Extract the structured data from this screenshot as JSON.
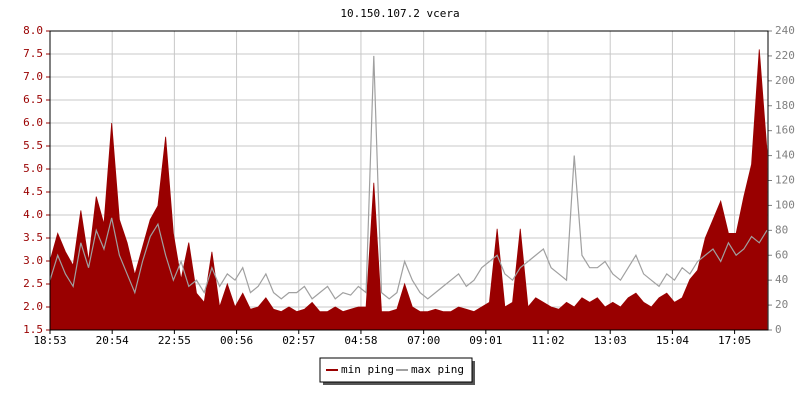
{
  "chart_data": {
    "type": "area-line",
    "title": "10.150.107.2 vcera",
    "x": [
      "18:53",
      "19:08",
      "19:23",
      "19:38",
      "19:53",
      "20:08",
      "20:23",
      "20:38",
      "20:53",
      "21:08",
      "21:23",
      "21:38",
      "21:53",
      "22:08",
      "22:23",
      "22:38",
      "22:53",
      "23:08",
      "23:23",
      "23:38",
      "23:53",
      "00:08",
      "00:23",
      "00:38",
      "00:53",
      "01:08",
      "01:23",
      "01:38",
      "01:53",
      "02:08",
      "02:23",
      "02:38",
      "02:53",
      "03:08",
      "03:23",
      "03:38",
      "03:53",
      "04:08",
      "04:23",
      "04:38",
      "04:53",
      "05:08",
      "05:23",
      "05:38",
      "05:53",
      "06:08",
      "06:23",
      "06:38",
      "06:53",
      "07:08",
      "07:23",
      "07:38",
      "07:53",
      "08:08",
      "08:23",
      "08:38",
      "08:53",
      "09:08",
      "09:23",
      "09:38",
      "09:53",
      "10:08",
      "10:23",
      "10:38",
      "10:53",
      "11:08",
      "11:23",
      "11:38",
      "11:53",
      "12:08",
      "12:23",
      "12:38",
      "12:53",
      "13:08",
      "13:23",
      "13:38",
      "13:53",
      "14:08",
      "14:23",
      "14:38",
      "14:53",
      "15:08",
      "15:23",
      "15:38",
      "15:53",
      "16:08",
      "16:23",
      "16:38",
      "16:53",
      "17:08",
      "17:23",
      "17:38",
      "17:53",
      "18:08"
    ],
    "xlim": [
      "18:53",
      "18:10"
    ],
    "xticks": [
      "18:53",
      "20:54",
      "22:55",
      "00:56",
      "02:57",
      "04:58",
      "07:00",
      "09:01",
      "11:02",
      "13:03",
      "15:04",
      "17:05"
    ],
    "series": [
      {
        "name": "min ping",
        "color": "#990000",
        "values": [
          3.0,
          3.6,
          3.2,
          2.9,
          4.1,
          3.0,
          4.4,
          3.8,
          6.0,
          3.9,
          3.4,
          2.7,
          3.3,
          3.9,
          4.2,
          5.7,
          3.6,
          2.6,
          3.4,
          2.3,
          2.1,
          3.2,
          2.0,
          2.5,
          2.0,
          2.3,
          1.95,
          2.0,
          2.2,
          1.95,
          1.9,
          2.0,
          1.9,
          1.95,
          2.1,
          1.9,
          1.9,
          2.0,
          1.9,
          1.95,
          2.0,
          2.0,
          4.7,
          1.9,
          1.9,
          1.95,
          2.5,
          2.0,
          1.9,
          1.9,
          1.95,
          1.9,
          1.9,
          2.0,
          1.95,
          1.9,
          2.0,
          2.1,
          3.7,
          2.0,
          2.1,
          3.7,
          2.0,
          2.2,
          2.1,
          2.0,
          1.95,
          2.1,
          2.0,
          2.2,
          2.1,
          2.2,
          2.0,
          2.1,
          2.0,
          2.2,
          2.3,
          2.1,
          2.0,
          2.2,
          2.3,
          2.1,
          2.2,
          2.6,
          2.8,
          3.5,
          3.9,
          4.3,
          3.6,
          3.6,
          4.4,
          5.1,
          7.6,
          5.4
        ]
      },
      {
        "name": "max ping",
        "color": "#a0a0a0",
        "axis": "y2",
        "values": [
          40,
          60,
          45,
          35,
          70,
          50,
          80,
          65,
          90,
          60,
          45,
          30,
          55,
          75,
          85,
          60,
          40,
          55,
          35,
          40,
          30,
          50,
          35,
          45,
          40,
          50,
          30,
          35,
          45,
          30,
          25,
          30,
          30,
          35,
          25,
          30,
          35,
          25,
          30,
          28,
          35,
          30,
          220,
          30,
          25,
          30,
          55,
          40,
          30,
          25,
          30,
          35,
          40,
          45,
          35,
          40,
          50,
          55,
          60,
          45,
          40,
          50,
          55,
          60,
          65,
          50,
          45,
          40,
          140,
          60,
          50,
          50,
          55,
          45,
          40,
          50,
          60,
          45,
          40,
          35,
          45,
          40,
          50,
          45,
          55,
          60,
          65,
          55,
          70,
          60,
          65,
          75,
          70,
          80
        ]
      }
    ],
    "ylim": [
      1.5,
      8.0
    ],
    "yticks": [
      1.5,
      {
        "value": 2,
        "label": "2.0"
      },
      2.5,
      {
        "value": 3,
        "label": "3.0"
      },
      3.5,
      {
        "value": 4,
        "label": "4.0"
      },
      4.5,
      {
        "value": 5,
        "label": "5.0"
      },
      5.5,
      {
        "value": 6,
        "label": "6.0"
      },
      6.5,
      {
        "value": 7,
        "label": "7.0"
      },
      7.5,
      {
        "value": 8,
        "label": "8.0"
      }
    ],
    "y2lim": [
      0,
      240
    ],
    "y2ticks": [
      0,
      20,
      40,
      60,
      80,
      100,
      120,
      140,
      160,
      180,
      200,
      220,
      240
    ],
    "grid": true,
    "legend": "bottom"
  }
}
